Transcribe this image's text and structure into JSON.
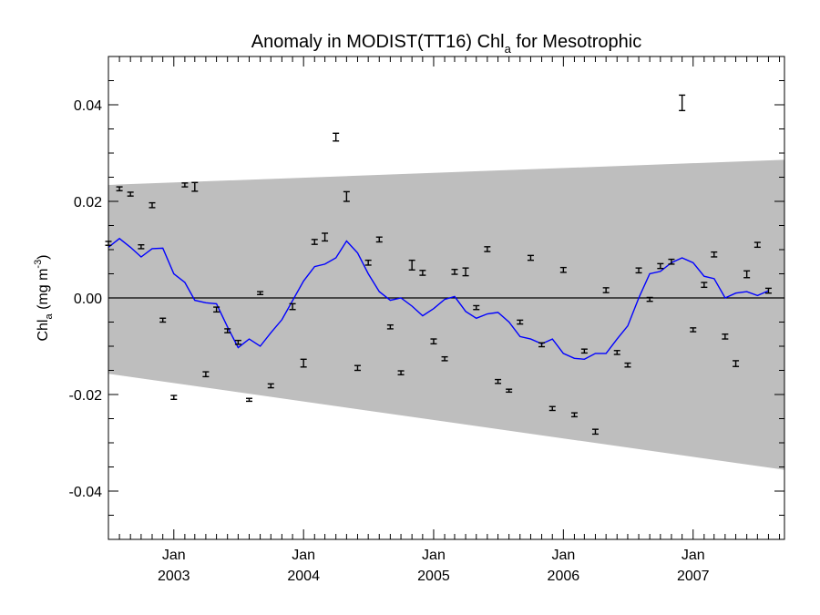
{
  "chart_data": {
    "type": "scatter",
    "title": {
      "main": "Anomaly in MODIST(TT16) Chl",
      "sub": "a",
      "rest": " for Mesotrophic"
    },
    "ylabel": {
      "main": "Chl",
      "sub": "a",
      "units_open": " (mg m",
      "sup": "-3",
      "units_close": ")"
    },
    "xlabel": "",
    "xlim": [
      "2002-07-01",
      "2007-09-15"
    ],
    "ylim": [
      -0.05,
      0.05
    ],
    "y_ticks": [
      -0.04,
      -0.02,
      0.0,
      0.02,
      0.04
    ],
    "y_tick_labels": [
      "-0.04",
      "-0.02",
      "0.00",
      "0.02",
      "0.04"
    ],
    "x_ticks": [
      {
        "date": "2003-01-01",
        "month": "Jan",
        "year": "2003"
      },
      {
        "date": "2004-01-01",
        "month": "Jan",
        "year": "2004"
      },
      {
        "date": "2005-01-01",
        "month": "Jan",
        "year": "2005"
      },
      {
        "date": "2006-01-01",
        "month": "Jan",
        "year": "2006"
      },
      {
        "date": "2007-01-01",
        "month": "Jan",
        "year": "2007"
      }
    ],
    "zero_line": 0.0,
    "band": {
      "start_date": "2002-07-01",
      "end_date": "2007-09-15",
      "upper_start": 0.0234,
      "upper_end": 0.0286,
      "lower_start": -0.0157,
      "lower_end": -0.0356,
      "color": "#bebebe"
    },
    "series": [
      {
        "type": "errorbar",
        "color": "#000000",
        "points": [
          {
            "date": "2002-07-01",
            "y": 0.0113,
            "err": 0.0004
          },
          {
            "date": "2002-08-01",
            "y": 0.0226,
            "err": 0.0004
          },
          {
            "date": "2002-09-01",
            "y": 0.0215,
            "err": 0.0004
          },
          {
            "date": "2002-10-01",
            "y": 0.0106,
            "err": 0.0004
          },
          {
            "date": "2002-11-01",
            "y": 0.0192,
            "err": 0.0005
          },
          {
            "date": "2002-12-01",
            "y": -0.0046,
            "err": 0.0004
          },
          {
            "date": "2003-01-01",
            "y": -0.0206,
            "err": 0.0004
          },
          {
            "date": "2003-02-01",
            "y": 0.0234,
            "err": 0.0004
          },
          {
            "date": "2003-03-01",
            "y": 0.023,
            "err": 0.0009
          },
          {
            "date": "2003-04-01",
            "y": -0.0158,
            "err": 0.0005
          },
          {
            "date": "2003-05-01",
            "y": -0.0024,
            "err": 0.0005
          },
          {
            "date": "2003-06-01",
            "y": -0.0068,
            "err": 0.0004
          },
          {
            "date": "2003-07-01",
            "y": -0.0092,
            "err": 0.0004
          },
          {
            "date": "2003-08-01",
            "y": -0.0211,
            "err": 0.0003
          },
          {
            "date": "2003-09-01",
            "y": 0.001,
            "err": 0.0003
          },
          {
            "date": "2003-10-01",
            "y": -0.0182,
            "err": 0.0004
          },
          {
            "date": "2003-12-01",
            "y": -0.0018,
            "err": 0.0006
          },
          {
            "date": "2004-01-01",
            "y": -0.0135,
            "err": 0.0008
          },
          {
            "date": "2004-02-01",
            "y": 0.0116,
            "err": 0.0005
          },
          {
            "date": "2004-03-01",
            "y": 0.0126,
            "err": 0.0008
          },
          {
            "date": "2004-04-01",
            "y": 0.0333,
            "err": 0.0008
          },
          {
            "date": "2004-05-01",
            "y": 0.021,
            "err": 0.001
          },
          {
            "date": "2004-06-01",
            "y": -0.0145,
            "err": 0.0005
          },
          {
            "date": "2004-07-01",
            "y": 0.0073,
            "err": 0.0005
          },
          {
            "date": "2004-08-01",
            "y": 0.0121,
            "err": 0.0005
          },
          {
            "date": "2004-09-01",
            "y": -0.006,
            "err": 0.0004
          },
          {
            "date": "2004-10-01",
            "y": -0.0155,
            "err": 0.0004
          },
          {
            "date": "2004-11-01",
            "y": 0.0068,
            "err": 0.001
          },
          {
            "date": "2004-12-01",
            "y": 0.0052,
            "err": 0.0005
          },
          {
            "date": "2005-01-01",
            "y": -0.009,
            "err": 0.0005
          },
          {
            "date": "2005-02-01",
            "y": -0.0126,
            "err": 0.0004
          },
          {
            "date": "2005-03-01",
            "y": 0.0054,
            "err": 0.0005
          },
          {
            "date": "2005-04-01",
            "y": 0.0054,
            "err": 0.0008
          },
          {
            "date": "2005-05-01",
            "y": -0.002,
            "err": 0.0004
          },
          {
            "date": "2005-06-01",
            "y": 0.0101,
            "err": 0.0005
          },
          {
            "date": "2005-07-01",
            "y": -0.0173,
            "err": 0.0004
          },
          {
            "date": "2005-08-01",
            "y": -0.0192,
            "err": 0.0003
          },
          {
            "date": "2005-09-01",
            "y": -0.005,
            "err": 0.0004
          },
          {
            "date": "2005-10-01",
            "y": 0.0083,
            "err": 0.0005
          },
          {
            "date": "2005-11-01",
            "y": -0.0097,
            "err": 0.0004
          },
          {
            "date": "2005-12-01",
            "y": -0.0229,
            "err": 0.0004
          },
          {
            "date": "2006-01-01",
            "y": 0.0058,
            "err": 0.0005
          },
          {
            "date": "2006-02-01",
            "y": -0.0242,
            "err": 0.0004
          },
          {
            "date": "2006-03-01",
            "y": -0.011,
            "err": 0.0004
          },
          {
            "date": "2006-04-01",
            "y": -0.0277,
            "err": 0.0005
          },
          {
            "date": "2006-05-01",
            "y": 0.0016,
            "err": 0.0005
          },
          {
            "date": "2006-06-01",
            "y": -0.0113,
            "err": 0.0004
          },
          {
            "date": "2006-07-01",
            "y": -0.0139,
            "err": 0.0004
          },
          {
            "date": "2006-08-01",
            "y": 0.0057,
            "err": 0.0005
          },
          {
            "date": "2006-09-01",
            "y": -0.0003,
            "err": 0.0004
          },
          {
            "date": "2006-10-01",
            "y": 0.0066,
            "err": 0.0005
          },
          {
            "date": "2006-11-01",
            "y": 0.0075,
            "err": 0.0005
          },
          {
            "date": "2006-12-01",
            "y": 0.0404,
            "err": 0.0016
          },
          {
            "date": "2007-01-01",
            "y": -0.0066,
            "err": 0.0004
          },
          {
            "date": "2007-02-01",
            "y": 0.0027,
            "err": 0.0005
          },
          {
            "date": "2007-03-01",
            "y": 0.009,
            "err": 0.0005
          },
          {
            "date": "2007-04-01",
            "y": -0.008,
            "err": 0.0005
          },
          {
            "date": "2007-05-01",
            "y": -0.0136,
            "err": 0.0006
          },
          {
            "date": "2007-06-01",
            "y": 0.0049,
            "err": 0.0007
          },
          {
            "date": "2007-07-01",
            "y": 0.011,
            "err": 0.0005
          },
          {
            "date": "2007-08-01",
            "y": 0.0015,
            "err": 0.0005
          }
        ]
      },
      {
        "type": "line",
        "color": "#0000ff",
        "points": [
          {
            "date": "2002-07-01",
            "y": 0.0105
          },
          {
            "date": "2002-08-01",
            "y": 0.0123
          },
          {
            "date": "2002-09-01",
            "y": 0.0105
          },
          {
            "date": "2002-10-01",
            "y": 0.0085
          },
          {
            "date": "2002-11-01",
            "y": 0.0102
          },
          {
            "date": "2002-12-01",
            "y": 0.0103
          },
          {
            "date": "2003-01-01",
            "y": 0.005
          },
          {
            "date": "2003-02-01",
            "y": 0.0032
          },
          {
            "date": "2003-03-01",
            "y": -0.0005
          },
          {
            "date": "2003-04-01",
            "y": -0.001
          },
          {
            "date": "2003-05-01",
            "y": -0.0012
          },
          {
            "date": "2003-06-01",
            "y": -0.006
          },
          {
            "date": "2003-07-01",
            "y": -0.0103
          },
          {
            "date": "2003-08-01",
            "y": -0.0085
          },
          {
            "date": "2003-09-01",
            "y": -0.01
          },
          {
            "date": "2003-10-01",
            "y": -0.0072
          },
          {
            "date": "2003-11-01",
            "y": -0.0045
          },
          {
            "date": "2004-01-01",
            "y": 0.0035
          },
          {
            "date": "2004-02-01",
            "y": 0.0065
          },
          {
            "date": "2004-03-01",
            "y": 0.007
          },
          {
            "date": "2004-04-01",
            "y": 0.0083
          },
          {
            "date": "2004-05-01",
            "y": 0.0118
          },
          {
            "date": "2004-06-01",
            "y": 0.0093
          },
          {
            "date": "2004-07-01",
            "y": 0.005
          },
          {
            "date": "2004-08-01",
            "y": 0.0013
          },
          {
            "date": "2004-09-01",
            "y": -0.0005
          },
          {
            "date": "2004-10-01",
            "y": 0.0
          },
          {
            "date": "2004-11-01",
            "y": -0.0017
          },
          {
            "date": "2004-12-01",
            "y": -0.0037
          },
          {
            "date": "2005-01-01",
            "y": -0.0022
          },
          {
            "date": "2005-02-01",
            "y": -0.0003
          },
          {
            "date": "2005-03-01",
            "y": 0.0003
          },
          {
            "date": "2005-04-01",
            "y": -0.0028
          },
          {
            "date": "2005-05-01",
            "y": -0.0042
          },
          {
            "date": "2005-06-01",
            "y": -0.0033
          },
          {
            "date": "2005-07-01",
            "y": -0.003
          },
          {
            "date": "2005-08-01",
            "y": -0.005
          },
          {
            "date": "2005-09-01",
            "y": -0.008
          },
          {
            "date": "2005-10-01",
            "y": -0.0085
          },
          {
            "date": "2005-11-01",
            "y": -0.0095
          },
          {
            "date": "2005-12-01",
            "y": -0.0085
          },
          {
            "date": "2006-01-01",
            "y": -0.0115
          },
          {
            "date": "2006-02-01",
            "y": -0.0125
          },
          {
            "date": "2006-03-01",
            "y": -0.0127
          },
          {
            "date": "2006-04-01",
            "y": -0.0115
          },
          {
            "date": "2006-05-01",
            "y": -0.0115
          },
          {
            "date": "2006-06-01",
            "y": -0.0085
          },
          {
            "date": "2006-07-01",
            "y": -0.0058
          },
          {
            "date": "2006-08-01",
            "y": 0.0
          },
          {
            "date": "2006-09-01",
            "y": 0.005
          },
          {
            "date": "2006-10-01",
            "y": 0.0055
          },
          {
            "date": "2006-11-01",
            "y": 0.0073
          },
          {
            "date": "2006-12-01",
            "y": 0.0083
          },
          {
            "date": "2007-01-01",
            "y": 0.0073
          },
          {
            "date": "2007-02-01",
            "y": 0.0045
          },
          {
            "date": "2007-03-01",
            "y": 0.004
          },
          {
            "date": "2007-04-01",
            "y": 0.0
          },
          {
            "date": "2007-05-01",
            "y": 0.001
          },
          {
            "date": "2007-06-01",
            "y": 0.0013
          },
          {
            "date": "2007-07-01",
            "y": 0.0005
          },
          {
            "date": "2007-08-01",
            "y": 0.0015
          }
        ]
      }
    ]
  }
}
